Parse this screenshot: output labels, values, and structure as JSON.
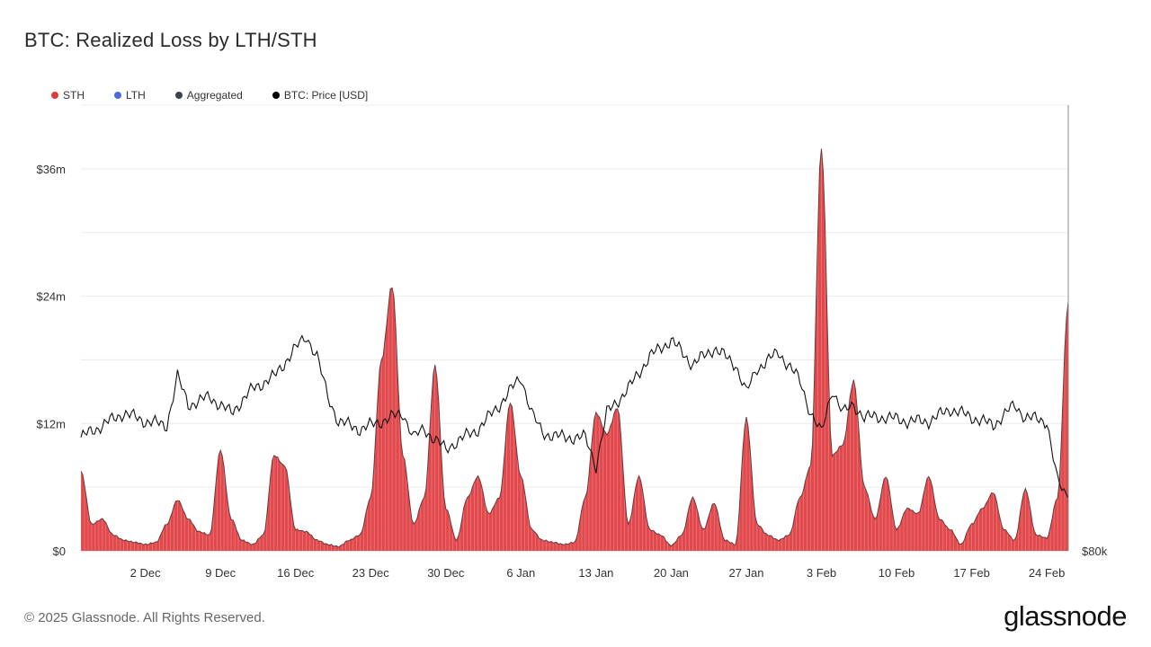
{
  "header": {
    "title": "BTC: Realized Loss by LTH/STH"
  },
  "legend": [
    {
      "label": "STH",
      "color": "#e0393e"
    },
    {
      "label": "LTH",
      "color": "#4a6bd8"
    },
    {
      "label": "Aggregated",
      "color": "#3d4250"
    },
    {
      "label": "BTC: Price [USD]",
      "color": "#000000"
    }
  ],
  "footer": {
    "copyright": "© 2025 Glassnode. All Rights Reserved.",
    "brand": "glassnode"
  },
  "chart_data": {
    "type": "area",
    "title": "BTC: Realized Loss by LTH/STH",
    "x_range": [
      "2024-11-26",
      "2025-02-26"
    ],
    "x_ticks": [
      "2 Dec",
      "9 Dec",
      "16 Dec",
      "23 Dec",
      "30 Dec",
      "6 Jan",
      "13 Jan",
      "20 Jan",
      "27 Jan",
      "3 Feb",
      "10 Feb",
      "17 Feb",
      "24 Feb"
    ],
    "y_ticks": [
      "$0",
      "$12m",
      "$24m",
      "$36m"
    ],
    "ylim_musd": [
      0,
      42
    ],
    "y2_ticks": [
      "$80k"
    ],
    "grid": true,
    "legend_position": "top-left",
    "series": [
      {
        "name": "STH",
        "color": "#e0393e",
        "unit": "USD million",
        "points": [
          [
            "2024-11-26",
            7.5
          ],
          [
            "2024-11-27",
            2.5
          ],
          [
            "2024-11-28",
            3.0
          ],
          [
            "2024-11-29",
            1.5
          ],
          [
            "2024-11-30",
            1.0
          ],
          [
            "2024-12-01",
            0.8
          ],
          [
            "2024-12-02",
            0.6
          ],
          [
            "2024-12-03",
            0.8
          ],
          [
            "2024-12-04",
            2.5
          ],
          [
            "2024-12-05",
            4.8
          ],
          [
            "2024-12-06",
            3.0
          ],
          [
            "2024-12-07",
            1.8
          ],
          [
            "2024-12-08",
            1.5
          ],
          [
            "2024-12-09",
            9.5
          ],
          [
            "2024-12-10",
            3.0
          ],
          [
            "2024-12-11",
            1.0
          ],
          [
            "2024-12-12",
            0.6
          ],
          [
            "2024-12-13",
            1.5
          ],
          [
            "2024-12-14",
            9.0
          ],
          [
            "2024-12-15",
            8.0
          ],
          [
            "2024-12-16",
            2.0
          ],
          [
            "2024-12-17",
            1.8
          ],
          [
            "2024-12-18",
            1.0
          ],
          [
            "2024-12-19",
            0.6
          ],
          [
            "2024-12-20",
            0.4
          ],
          [
            "2024-12-21",
            1.0
          ],
          [
            "2024-12-22",
            1.5
          ],
          [
            "2024-12-23",
            5.0
          ],
          [
            "2024-12-24",
            18.0
          ],
          [
            "2024-12-25",
            25.0
          ],
          [
            "2024-12-26",
            9.0
          ],
          [
            "2024-12-27",
            2.5
          ],
          [
            "2024-12-28",
            5.0
          ],
          [
            "2024-12-29",
            17.5
          ],
          [
            "2024-12-30",
            4.0
          ],
          [
            "2024-12-31",
            1.0
          ],
          [
            "2025-01-01",
            5.0
          ],
          [
            "2025-01-02",
            7.0
          ],
          [
            "2025-01-03",
            3.5
          ],
          [
            "2025-01-04",
            5.0
          ],
          [
            "2025-01-05",
            14.0
          ],
          [
            "2025-01-06",
            7.0
          ],
          [
            "2025-01-07",
            2.0
          ],
          [
            "2025-01-08",
            1.0
          ],
          [
            "2025-01-09",
            0.8
          ],
          [
            "2025-01-10",
            0.6
          ],
          [
            "2025-01-11",
            0.8
          ],
          [
            "2025-01-12",
            5.0
          ],
          [
            "2025-01-13",
            13.0
          ],
          [
            "2025-01-14",
            11.0
          ],
          [
            "2025-01-15",
            13.5
          ],
          [
            "2025-01-16",
            2.5
          ],
          [
            "2025-01-17",
            7.0
          ],
          [
            "2025-01-18",
            2.0
          ],
          [
            "2025-01-19",
            1.5
          ],
          [
            "2025-01-20",
            0.5
          ],
          [
            "2025-01-21",
            1.5
          ],
          [
            "2025-01-22",
            5.0
          ],
          [
            "2025-01-23",
            2.0
          ],
          [
            "2025-01-24",
            4.5
          ],
          [
            "2025-01-25",
            1.0
          ],
          [
            "2025-01-26",
            0.6
          ],
          [
            "2025-01-27",
            12.5
          ],
          [
            "2025-01-28",
            2.5
          ],
          [
            "2025-01-29",
            1.5
          ],
          [
            "2025-01-30",
            1.0
          ],
          [
            "2025-01-31",
            1.5
          ],
          [
            "2025-02-01",
            5.0
          ],
          [
            "2025-02-02",
            8.0
          ],
          [
            "2025-02-03",
            38.0
          ],
          [
            "2025-02-04",
            9.0
          ],
          [
            "2025-02-05",
            10.0
          ],
          [
            "2025-02-06",
            16.0
          ],
          [
            "2025-02-07",
            6.0
          ],
          [
            "2025-02-08",
            3.0
          ],
          [
            "2025-02-09",
            7.0
          ],
          [
            "2025-02-10",
            2.0
          ],
          [
            "2025-02-11",
            4.0
          ],
          [
            "2025-02-12",
            3.5
          ],
          [
            "2025-02-13",
            7.0
          ],
          [
            "2025-02-14",
            3.0
          ],
          [
            "2025-02-15",
            2.0
          ],
          [
            "2025-02-16",
            0.6
          ],
          [
            "2025-02-17",
            2.5
          ],
          [
            "2025-02-18",
            4.0
          ],
          [
            "2025-02-19",
            5.5
          ],
          [
            "2025-02-20",
            2.0
          ],
          [
            "2025-02-21",
            1.0
          ],
          [
            "2025-02-22",
            5.8
          ],
          [
            "2025-02-23",
            1.5
          ],
          [
            "2025-02-24",
            1.2
          ],
          [
            "2025-02-25",
            5.0
          ],
          [
            "2025-02-26",
            23.5
          ]
        ]
      },
      {
        "name": "BTC: Price [USD]",
        "color": "#111111",
        "unit": "USD thousand",
        "axis": "right",
        "points": [
          [
            "2024-11-26",
            94
          ],
          [
            "2024-11-28",
            95.5
          ],
          [
            "2024-11-30",
            97
          ],
          [
            "2024-12-02",
            96
          ],
          [
            "2024-12-04",
            95.5
          ],
          [
            "2024-12-05",
            101.5
          ],
          [
            "2024-12-06",
            98
          ],
          [
            "2024-12-08",
            99
          ],
          [
            "2024-12-10",
            97
          ],
          [
            "2024-12-12",
            100
          ],
          [
            "2024-12-14",
            101.5
          ],
          [
            "2024-12-16",
            105
          ],
          [
            "2024-12-17",
            106.5
          ],
          [
            "2024-12-18",
            104
          ],
          [
            "2024-12-19",
            99
          ],
          [
            "2024-12-20",
            96
          ],
          [
            "2024-12-22",
            95
          ],
          [
            "2024-12-24",
            96
          ],
          [
            "2024-12-26",
            97
          ],
          [
            "2024-12-27",
            94
          ],
          [
            "2024-12-28",
            95
          ],
          [
            "2024-12-30",
            92.5
          ],
          [
            "2024-12-31",
            93.5
          ],
          [
            "2025-01-02",
            95
          ],
          [
            "2025-01-04",
            98
          ],
          [
            "2025-01-06",
            101.5
          ],
          [
            "2025-01-07",
            97
          ],
          [
            "2025-01-08",
            94.5
          ],
          [
            "2025-01-10",
            94
          ],
          [
            "2025-01-12",
            94
          ],
          [
            "2025-01-13",
            90.5
          ],
          [
            "2025-01-14",
            97
          ],
          [
            "2025-01-16",
            100
          ],
          [
            "2025-01-18",
            104
          ],
          [
            "2025-01-20",
            106
          ],
          [
            "2025-01-22",
            103
          ],
          [
            "2025-01-24",
            105
          ],
          [
            "2025-01-26",
            103
          ],
          [
            "2025-01-27",
            99.5
          ],
          [
            "2025-01-28",
            102.5
          ],
          [
            "2025-01-30",
            104.5
          ],
          [
            "2025-02-01",
            101
          ],
          [
            "2025-02-02",
            97
          ],
          [
            "2025-02-03",
            94.5
          ],
          [
            "2025-02-04",
            100
          ],
          [
            "2025-02-05",
            97
          ],
          [
            "2025-02-06",
            98
          ],
          [
            "2025-02-07",
            96.5
          ],
          [
            "2025-02-09",
            96.5
          ],
          [
            "2025-02-11",
            96
          ],
          [
            "2025-02-13",
            96
          ],
          [
            "2025-02-15",
            97.5
          ],
          [
            "2025-02-17",
            96.5
          ],
          [
            "2025-02-19",
            95.5
          ],
          [
            "2025-02-21",
            98
          ],
          [
            "2025-02-22",
            96.5
          ],
          [
            "2025-02-24",
            96
          ],
          [
            "2025-02-25",
            88.5
          ],
          [
            "2025-02-26",
            86.5
          ]
        ]
      }
    ]
  }
}
